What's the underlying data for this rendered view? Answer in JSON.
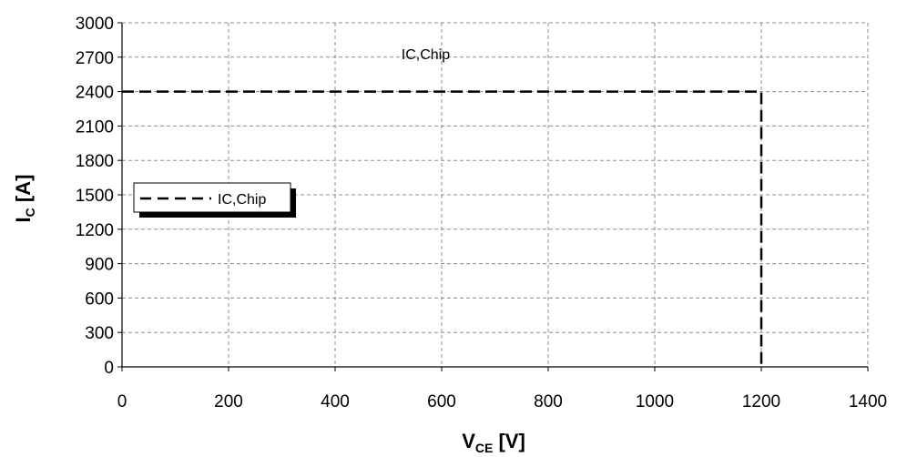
{
  "chart_data": {
    "type": "line",
    "xlabel": {
      "main": "V",
      "sub": "CE",
      "unit": " [V]"
    },
    "ylabel": {
      "main": "I",
      "sub": "C",
      "unit": " [A]"
    },
    "xlim": [
      0,
      1400
    ],
    "ylim": [
      0,
      3000
    ],
    "xticks": [
      0,
      200,
      400,
      600,
      800,
      1000,
      1200,
      1400
    ],
    "yticks": [
      0,
      300,
      600,
      900,
      1200,
      1500,
      1800,
      2100,
      2400,
      2700,
      3000
    ],
    "grid": true,
    "legend_position": "left",
    "series": [
      {
        "name": "IC,Chip",
        "line_style": "dashed",
        "color": "#000000",
        "x": [
          0,
          1200,
          1200
        ],
        "y": [
          2400,
          2400,
          0
        ]
      }
    ],
    "annotations": [
      {
        "text": "IC,Chip",
        "x": 570,
        "y": 2730
      }
    ]
  }
}
